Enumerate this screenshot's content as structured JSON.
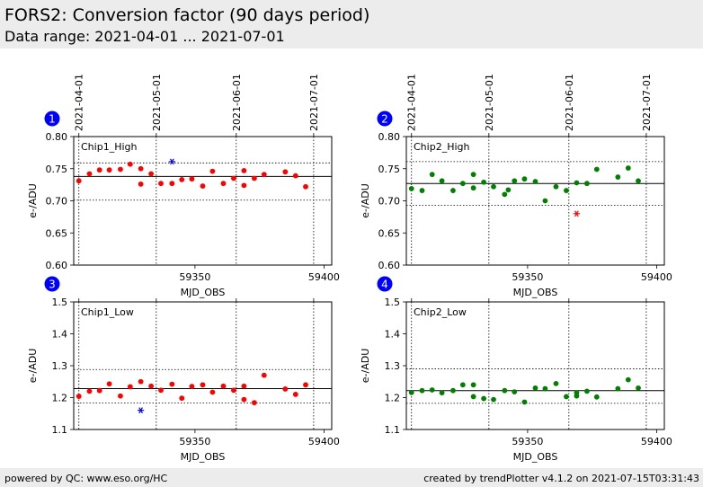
{
  "header": {
    "title": "FORS2: Conversion factor (90 days period)",
    "subtitle": "Data range: 2021-04-01 ... 2021-07-01"
  },
  "footer": {
    "left": "powered by QC: www.eso.org/HC",
    "right": "created by trendPlotter v4.1.2 on 2021-07-15T03:31:43"
  },
  "colors": {
    "header_bg": "#ececec",
    "badge": "#0000ff",
    "chip1_points": "#ff0000",
    "chip1_outlier": "#0000ff",
    "chip2_points": "#008000",
    "chip2_outlier": "#ff0000"
  },
  "chart_data": [
    {
      "type": "scatter",
      "badge": "1",
      "label": "Chip1_High",
      "xlabel": "MJD_OBS",
      "ylabel": "e-/ADU",
      "xlim": [
        59303,
        59403
      ],
      "ylim": [
        0.6,
        0.8
      ],
      "xticks": [
        59350,
        59400
      ],
      "yticks": [
        0.6,
        0.65,
        0.7,
        0.75,
        0.8
      ],
      "date_ticks": [
        {
          "x": 59305,
          "label": "2021-04-01"
        },
        {
          "x": 59335,
          "label": "2021-05-01"
        },
        {
          "x": 59366,
          "label": "2021-06-01"
        },
        {
          "x": 59396,
          "label": "2021-07-01"
        }
      ],
      "mean": 0.738,
      "limits": [
        0.701,
        0.759
      ],
      "points": [
        [
          59305.0,
          0.731
        ],
        [
          59309.1,
          0.742
        ],
        [
          59313.0,
          0.748
        ],
        [
          59316.8,
          0.748
        ],
        [
          59321.1,
          0.749
        ],
        [
          59324.9,
          0.757
        ],
        [
          59329.0,
          0.75
        ],
        [
          59329.0,
          0.726
        ],
        [
          59333.0,
          0.742
        ],
        [
          59336.8,
          0.727
        ],
        [
          59341.1,
          0.727
        ],
        [
          59344.9,
          0.733
        ],
        [
          59348.8,
          0.734
        ],
        [
          59353.0,
          0.723
        ],
        [
          59356.8,
          0.746
        ],
        [
          59361.0,
          0.727
        ],
        [
          59365.0,
          0.735
        ],
        [
          59369.0,
          0.747
        ],
        [
          59369.0,
          0.724
        ],
        [
          59373.0,
          0.735
        ],
        [
          59376.8,
          0.741
        ],
        [
          59385.0,
          0.745
        ],
        [
          59389.0,
          0.739
        ],
        [
          59392.9,
          0.722
        ]
      ],
      "outliers": [
        [
          59341.1,
          0.761
        ]
      ]
    },
    {
      "type": "scatter",
      "badge": "2",
      "label": "Chip2_High",
      "xlabel": "MJD_OBS",
      "ylabel": "e-/ADU",
      "xlim": [
        59303,
        59403
      ],
      "ylim": [
        0.6,
        0.8
      ],
      "xticks": [
        59350,
        59400
      ],
      "yticks": [
        0.6,
        0.65,
        0.7,
        0.75,
        0.8
      ],
      "date_ticks": [
        {
          "x": 59305,
          "label": "2021-04-01"
        },
        {
          "x": 59335,
          "label": "2021-05-01"
        },
        {
          "x": 59366,
          "label": "2021-06-01"
        },
        {
          "x": 59396,
          "label": "2021-07-01"
        }
      ],
      "mean": 0.727,
      "limits": [
        0.693,
        0.761
      ],
      "points": [
        [
          59305.0,
          0.719
        ],
        [
          59309.1,
          0.716
        ],
        [
          59313.0,
          0.741
        ],
        [
          59316.8,
          0.731
        ],
        [
          59321.1,
          0.716
        ],
        [
          59324.9,
          0.727
        ],
        [
          59329.0,
          0.72
        ],
        [
          59329.0,
          0.741
        ],
        [
          59333.0,
          0.729
        ],
        [
          59336.8,
          0.722
        ],
        [
          59341.1,
          0.71
        ],
        [
          59342.5,
          0.717
        ],
        [
          59344.9,
          0.731
        ],
        [
          59348.8,
          0.734
        ],
        [
          59353.0,
          0.73
        ],
        [
          59356.8,
          0.7
        ],
        [
          59361.0,
          0.722
        ],
        [
          59365.0,
          0.716
        ],
        [
          59369.0,
          0.728
        ],
        [
          59373.0,
          0.727
        ],
        [
          59376.8,
          0.749
        ],
        [
          59385.0,
          0.737
        ],
        [
          59389.0,
          0.751
        ],
        [
          59392.9,
          0.731
        ]
      ],
      "outliers": [
        [
          59369.0,
          0.68
        ]
      ]
    },
    {
      "type": "scatter",
      "badge": "3",
      "label": "Chip1_Low",
      "xlabel": "MJD_OBS",
      "ylabel": "e-/ADU",
      "xlim": [
        59303,
        59403
      ],
      "ylim": [
        1.1,
        1.5
      ],
      "xticks": [
        59350,
        59400
      ],
      "yticks": [
        1.1,
        1.2,
        1.3,
        1.4,
        1.5
      ],
      "date_ticks": [
        {
          "x": 59305,
          "label": ""
        },
        {
          "x": 59335,
          "label": ""
        },
        {
          "x": 59366,
          "label": ""
        },
        {
          "x": 59396,
          "label": ""
        }
      ],
      "mean": 1.228,
      "limits": [
        1.183,
        1.288
      ],
      "points": [
        [
          59305.0,
          1.204
        ],
        [
          59309.1,
          1.22
        ],
        [
          59313.0,
          1.222
        ],
        [
          59316.8,
          1.243
        ],
        [
          59321.1,
          1.205
        ],
        [
          59324.9,
          1.234
        ],
        [
          59329.0,
          1.25
        ],
        [
          59333.0,
          1.236
        ],
        [
          59336.8,
          1.223
        ],
        [
          59341.1,
          1.242
        ],
        [
          59344.9,
          1.198
        ],
        [
          59348.8,
          1.235
        ],
        [
          59353.0,
          1.24
        ],
        [
          59356.8,
          1.217
        ],
        [
          59361.0,
          1.236
        ],
        [
          59365.0,
          1.223
        ],
        [
          59369.0,
          1.236
        ],
        [
          59369.0,
          1.194
        ],
        [
          59373.0,
          1.184
        ],
        [
          59376.8,
          1.27
        ],
        [
          59385.0,
          1.227
        ],
        [
          59389.0,
          1.21
        ],
        [
          59392.9,
          1.24
        ]
      ],
      "outliers": [
        [
          59329.0,
          1.16
        ]
      ]
    },
    {
      "type": "scatter",
      "badge": "4",
      "label": "Chip2_Low",
      "xlabel": "MJD_OBS",
      "ylabel": "e-/ADU",
      "xlim": [
        59303,
        59403
      ],
      "ylim": [
        1.1,
        1.5
      ],
      "xticks": [
        59350,
        59400
      ],
      "yticks": [
        1.1,
        1.2,
        1.3,
        1.4,
        1.5
      ],
      "date_ticks": [
        {
          "x": 59305,
          "label": ""
        },
        {
          "x": 59335,
          "label": ""
        },
        {
          "x": 59366,
          "label": ""
        },
        {
          "x": 59396,
          "label": ""
        }
      ],
      "mean": 1.222,
      "limits": [
        1.182,
        1.29
      ],
      "points": [
        [
          59305.0,
          1.216
        ],
        [
          59309.1,
          1.222
        ],
        [
          59313.0,
          1.224
        ],
        [
          59316.8,
          1.215
        ],
        [
          59321.1,
          1.222
        ],
        [
          59324.9,
          1.24
        ],
        [
          59329.0,
          1.24
        ],
        [
          59329.0,
          1.203
        ],
        [
          59333.0,
          1.197
        ],
        [
          59336.8,
          1.194
        ],
        [
          59341.1,
          1.222
        ],
        [
          59344.9,
          1.218
        ],
        [
          59348.8,
          1.186
        ],
        [
          59353.0,
          1.23
        ],
        [
          59356.8,
          1.228
        ],
        [
          59361.0,
          1.244
        ],
        [
          59365.0,
          1.203
        ],
        [
          59369.0,
          1.215
        ],
        [
          59369.0,
          1.205
        ],
        [
          59373.0,
          1.22
        ],
        [
          59376.8,
          1.202
        ],
        [
          59385.0,
          1.228
        ],
        [
          59389.0,
          1.256
        ],
        [
          59392.9,
          1.23
        ]
      ],
      "outliers": []
    }
  ]
}
